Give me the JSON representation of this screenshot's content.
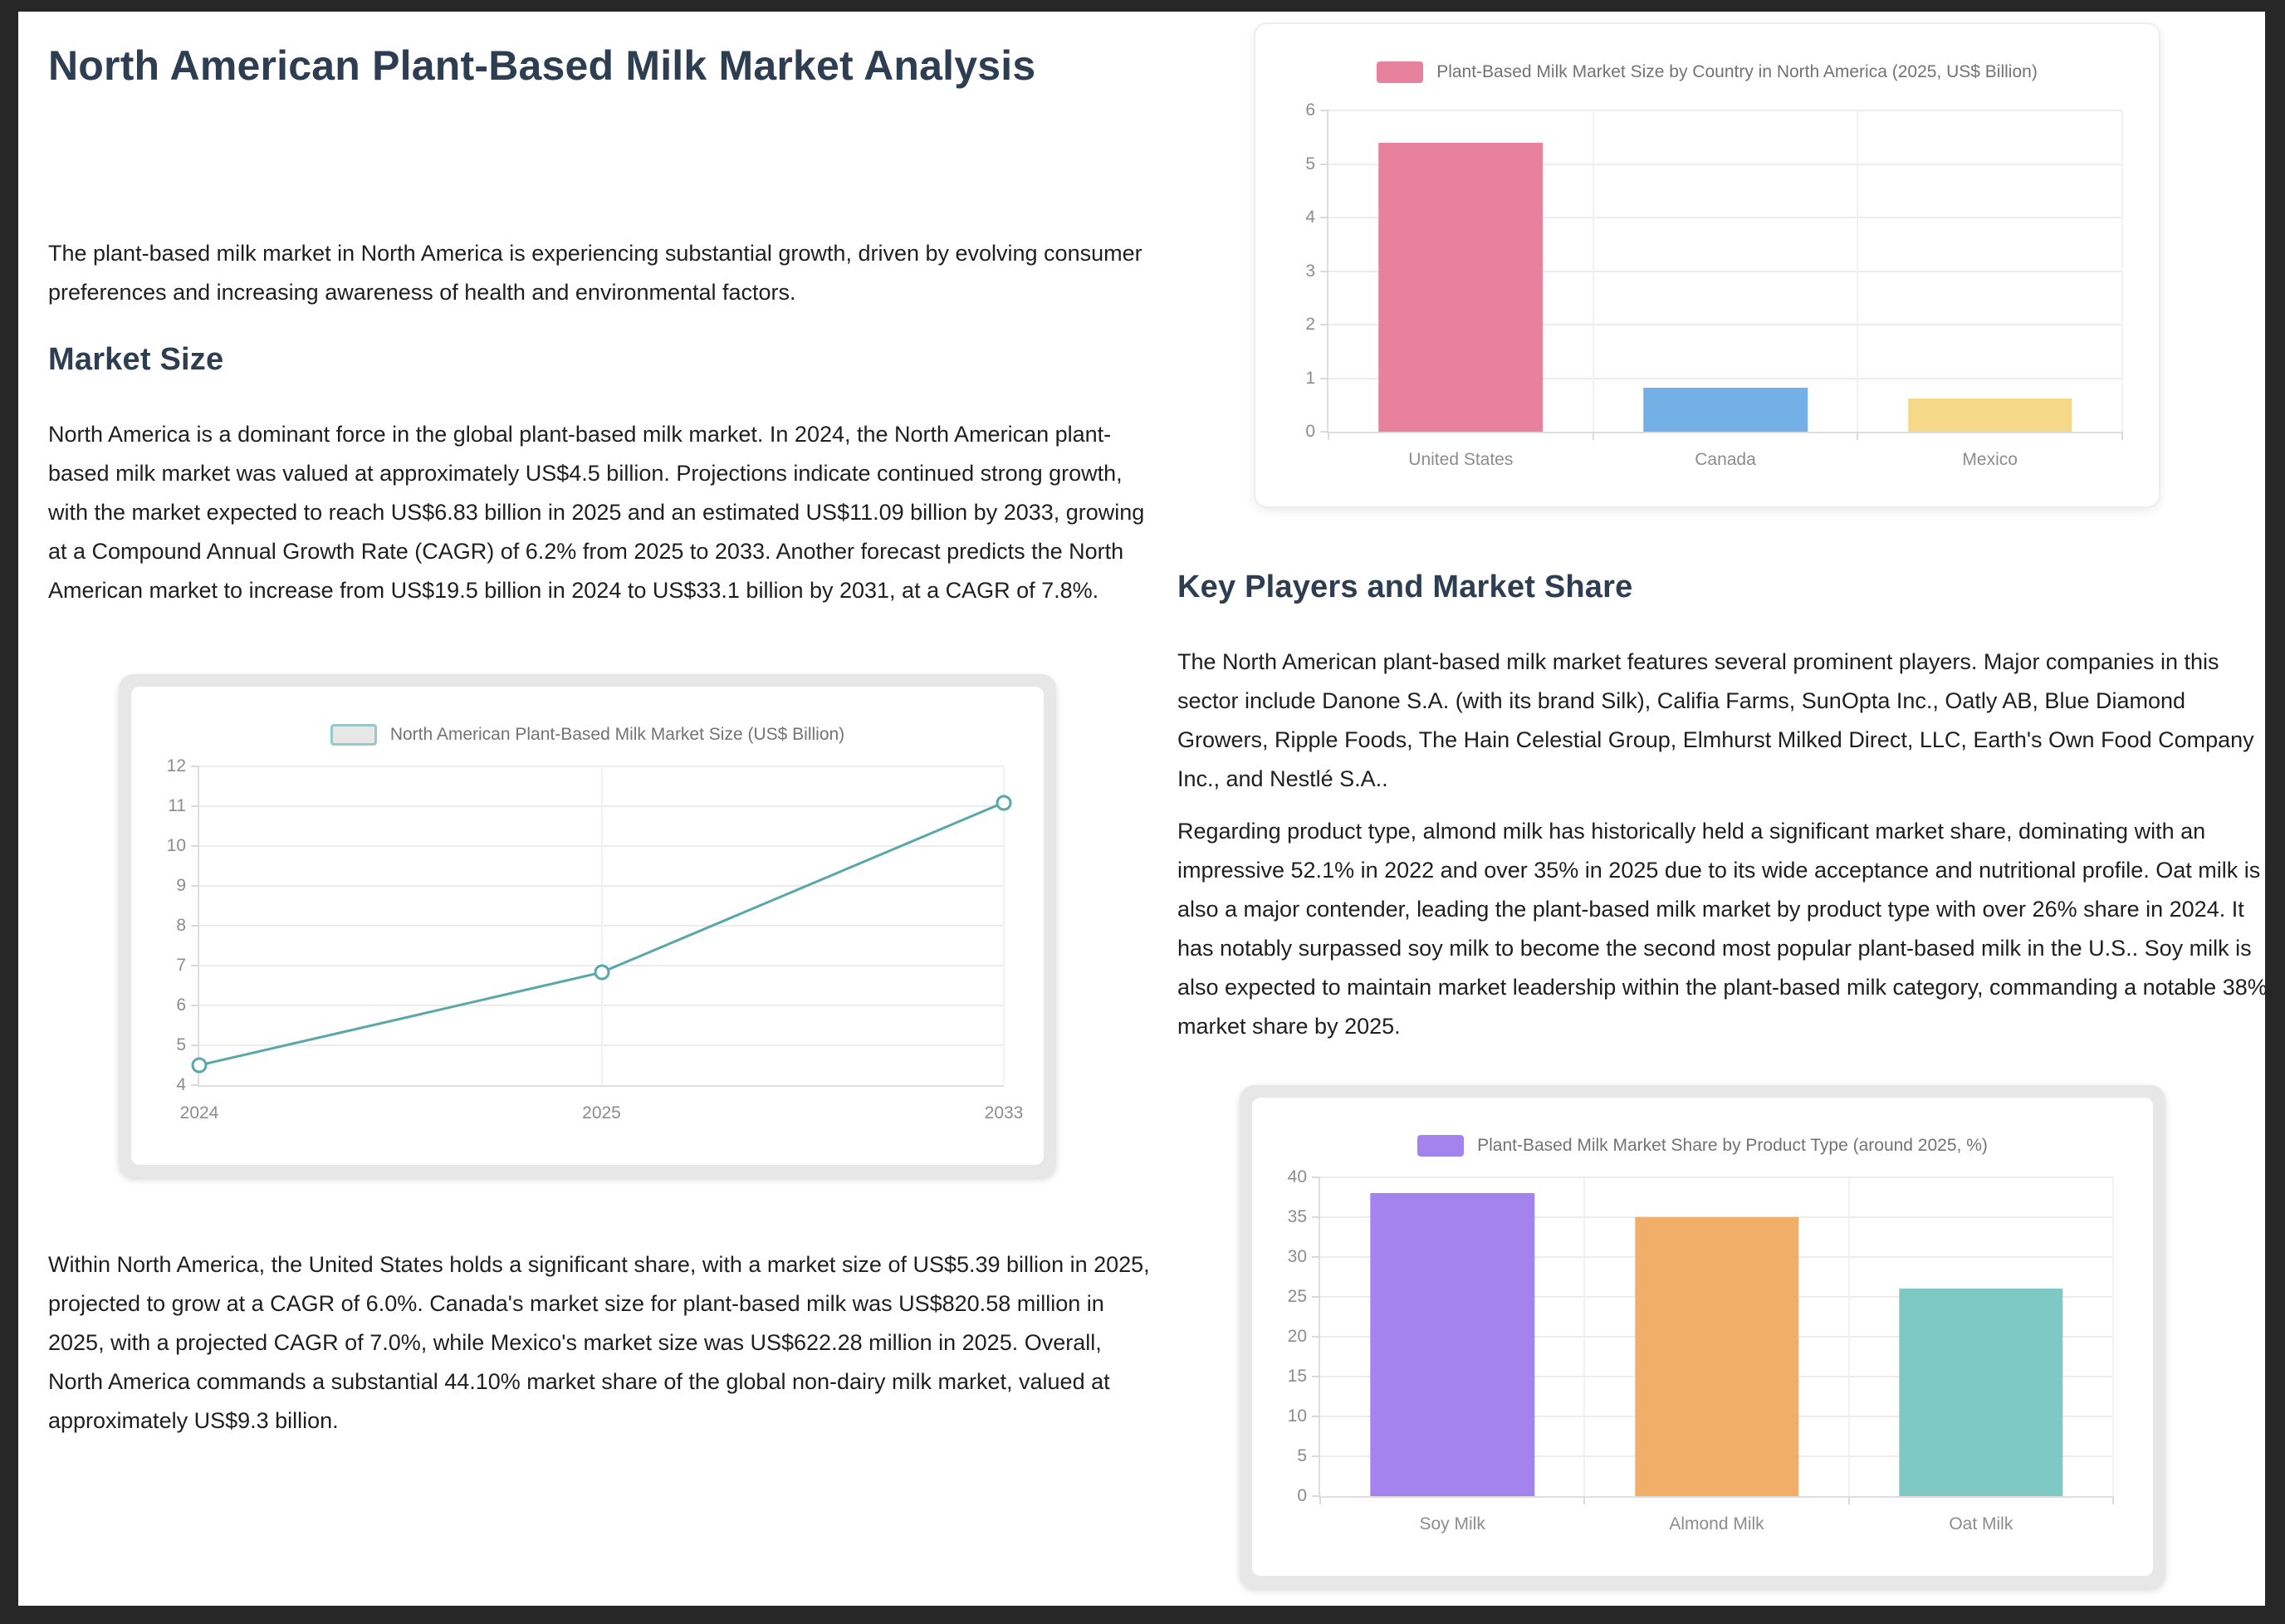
{
  "document": {
    "title": "North American Plant-Based Milk Market Analysis",
    "intro": "The plant-based milk market in North America is experiencing substantial growth, driven by evolving consumer preferences and increasing awareness of health and environmental factors.",
    "market_size": {
      "heading": "Market Size",
      "para1": "North America is a dominant force in the global plant-based milk market. In 2024, the North American plant-based milk market was valued at approximately US$4.5 billion. Projections indicate continued strong growth, with the market expected to reach US$6.83 billion in 2025 and an estimated US$11.09 billion by 2033, growing at a Compound Annual Growth Rate (CAGR) of 6.2% from 2025 to 2033. Another forecast predicts the North American market to increase from US$19.5 billion in 2024 to US$33.1 billion by 2031, at a CAGR of 7.8%.",
      "para2": "Within North America, the United States holds a significant share, with a market size of US$5.39 billion in 2025, projected to grow at a CAGR of 6.0%. Canada's market size for plant-based milk was US$820.58 million in 2025, with a projected CAGR of 7.0%, while Mexico's market size was US$622.28 million in 2025. Overall, North America commands a substantial 44.10% market share of the global non-dairy milk market, valued at approximately US$9.3 billion."
    },
    "key_players": {
      "heading": "Key Players and Market Share",
      "para1": "The North American plant-based milk market features several prominent players. Major companies in this sector include Danone S.A. (with its brand Silk), Califia Farms, SunOpta Inc., Oatly AB, Blue Diamond Growers, Ripple Foods, The Hain Celestial Group, Elmhurst Milked Direct, LLC, Earth's Own Food Company Inc., and Nestlé S.A..",
      "para2": "Regarding product type, almond milk has historically held a significant market share, dominating with an impressive 52.1% in 2022 and over 35% in 2025 due to its wide acceptance and nutritional profile. Oat milk is also a major contender, leading the plant-based milk market by product type with over 26% share in 2024. It has notably surpassed soy milk to become the second most popular plant-based milk in the U.S.. Soy milk is also expected to maintain market leadership within the plant-based milk category, commanding a notable 38% market share by 2025."
    }
  },
  "chart_data": [
    {
      "type": "bar",
      "title": "Plant-Based Milk Market Size by Country in North America (2025, US$ Billion)",
      "categories": [
        "United States",
        "Canada",
        "Mexico"
      ],
      "values": [
        5.39,
        0.82,
        0.62
      ],
      "colors": [
        "#e8819d",
        "#72b0e6",
        "#f6d988"
      ],
      "legend_swatch": {
        "fill": "#e8819d"
      },
      "legend_position": "top",
      "grid": true,
      "xlabel": "",
      "ylabel": "",
      "ylim": [
        0,
        6
      ],
      "ytick_step": 1
    },
    {
      "type": "line",
      "title": "North American Plant-Based Milk Market Size (US$ Billion)",
      "categories": [
        "2024",
        "2025",
        "2033"
      ],
      "values": [
        4.5,
        6.83,
        11.09
      ],
      "colors": [
        "#5aa7a9"
      ],
      "legend_swatch": {
        "fill": "#e7e7e7",
        "border": "#97c9c9"
      },
      "legend_position": "top",
      "grid": true,
      "xlabel": "",
      "ylabel": "",
      "ylim": [
        4,
        12
      ],
      "ytick_step": 1
    },
    {
      "type": "bar",
      "title": "Plant-Based Milk Market Share by Product Type (around 2025, %)",
      "categories": [
        "Soy Milk",
        "Almond Milk",
        "Oat Milk"
      ],
      "values": [
        38,
        35,
        26
      ],
      "colors": [
        "#a383ee",
        "#f0ae69",
        "#7fc9c5"
      ],
      "legend_swatch": {
        "fill": "#a383ee"
      },
      "legend_position": "top",
      "grid": true,
      "xlabel": "",
      "ylabel": "",
      "ylim": [
        0,
        40
      ],
      "ytick_step": 5
    }
  ]
}
